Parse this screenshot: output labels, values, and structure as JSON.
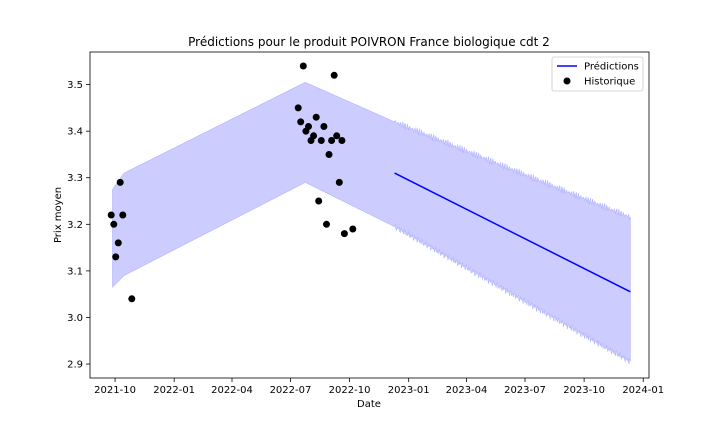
{
  "chart_data": {
    "type": "line",
    "title": "Prédictions pour le produit POIVRON France biologique cdt 2",
    "xlabel": "Date",
    "ylabel": "Prix moyen",
    "xlim": [
      "2021-08-23",
      "2024-01-10"
    ],
    "ylim": [
      2.87,
      3.57
    ],
    "x_ticks": [
      "2021-10",
      "2022-01",
      "2022-04",
      "2022-07",
      "2022-10",
      "2023-01",
      "2023-04",
      "2023-07",
      "2023-10",
      "2024-01"
    ],
    "y_ticks": [
      2.9,
      3.0,
      3.1,
      3.2,
      3.3,
      3.4,
      3.5
    ],
    "legend_position": "upper right",
    "grid": false,
    "series": [
      {
        "name": "Prédictions",
        "kind": "line",
        "color": "#0000ff",
        "x": [
          "2022-12-10",
          "2023-12-12"
        ],
        "y": [
          3.31,
          3.055
        ]
      },
      {
        "name": "Historique",
        "kind": "scatter",
        "color": "#000000",
        "x": [
          "2021-09-25",
          "2021-09-29",
          "2021-10-02",
          "2021-10-06",
          "2021-10-09",
          "2021-10-13",
          "2021-10-27",
          "2022-07-13",
          "2022-07-17",
          "2022-07-21",
          "2022-07-25",
          "2022-07-29",
          "2022-08-02",
          "2022-08-06",
          "2022-08-10",
          "2022-08-14",
          "2022-08-18",
          "2022-08-22",
          "2022-08-26",
          "2022-08-30",
          "2022-09-03",
          "2022-09-07",
          "2022-09-11",
          "2022-09-15",
          "2022-09-19",
          "2022-09-23",
          "2022-10-06"
        ],
        "y": [
          3.22,
          3.2,
          3.13,
          3.16,
          3.29,
          3.22,
          3.04,
          3.45,
          3.42,
          3.54,
          3.4,
          3.41,
          3.38,
          3.39,
          3.43,
          3.25,
          3.38,
          3.41,
          3.2,
          3.35,
          3.38,
          3.52,
          3.39,
          3.29,
          3.38,
          3.18,
          3.19
        ]
      }
    ],
    "uncertainty_band": {
      "color": "#ccccff",
      "x": [
        "2021-09-27",
        "2021-10-15",
        "2022-07-24",
        "2022-12-10",
        "2023-12-12"
      ],
      "upper": [
        3.275,
        3.31,
        3.505,
        3.42,
        3.215
      ],
      "lower": [
        3.065,
        3.09,
        3.29,
        3.195,
        2.905
      ]
    }
  }
}
